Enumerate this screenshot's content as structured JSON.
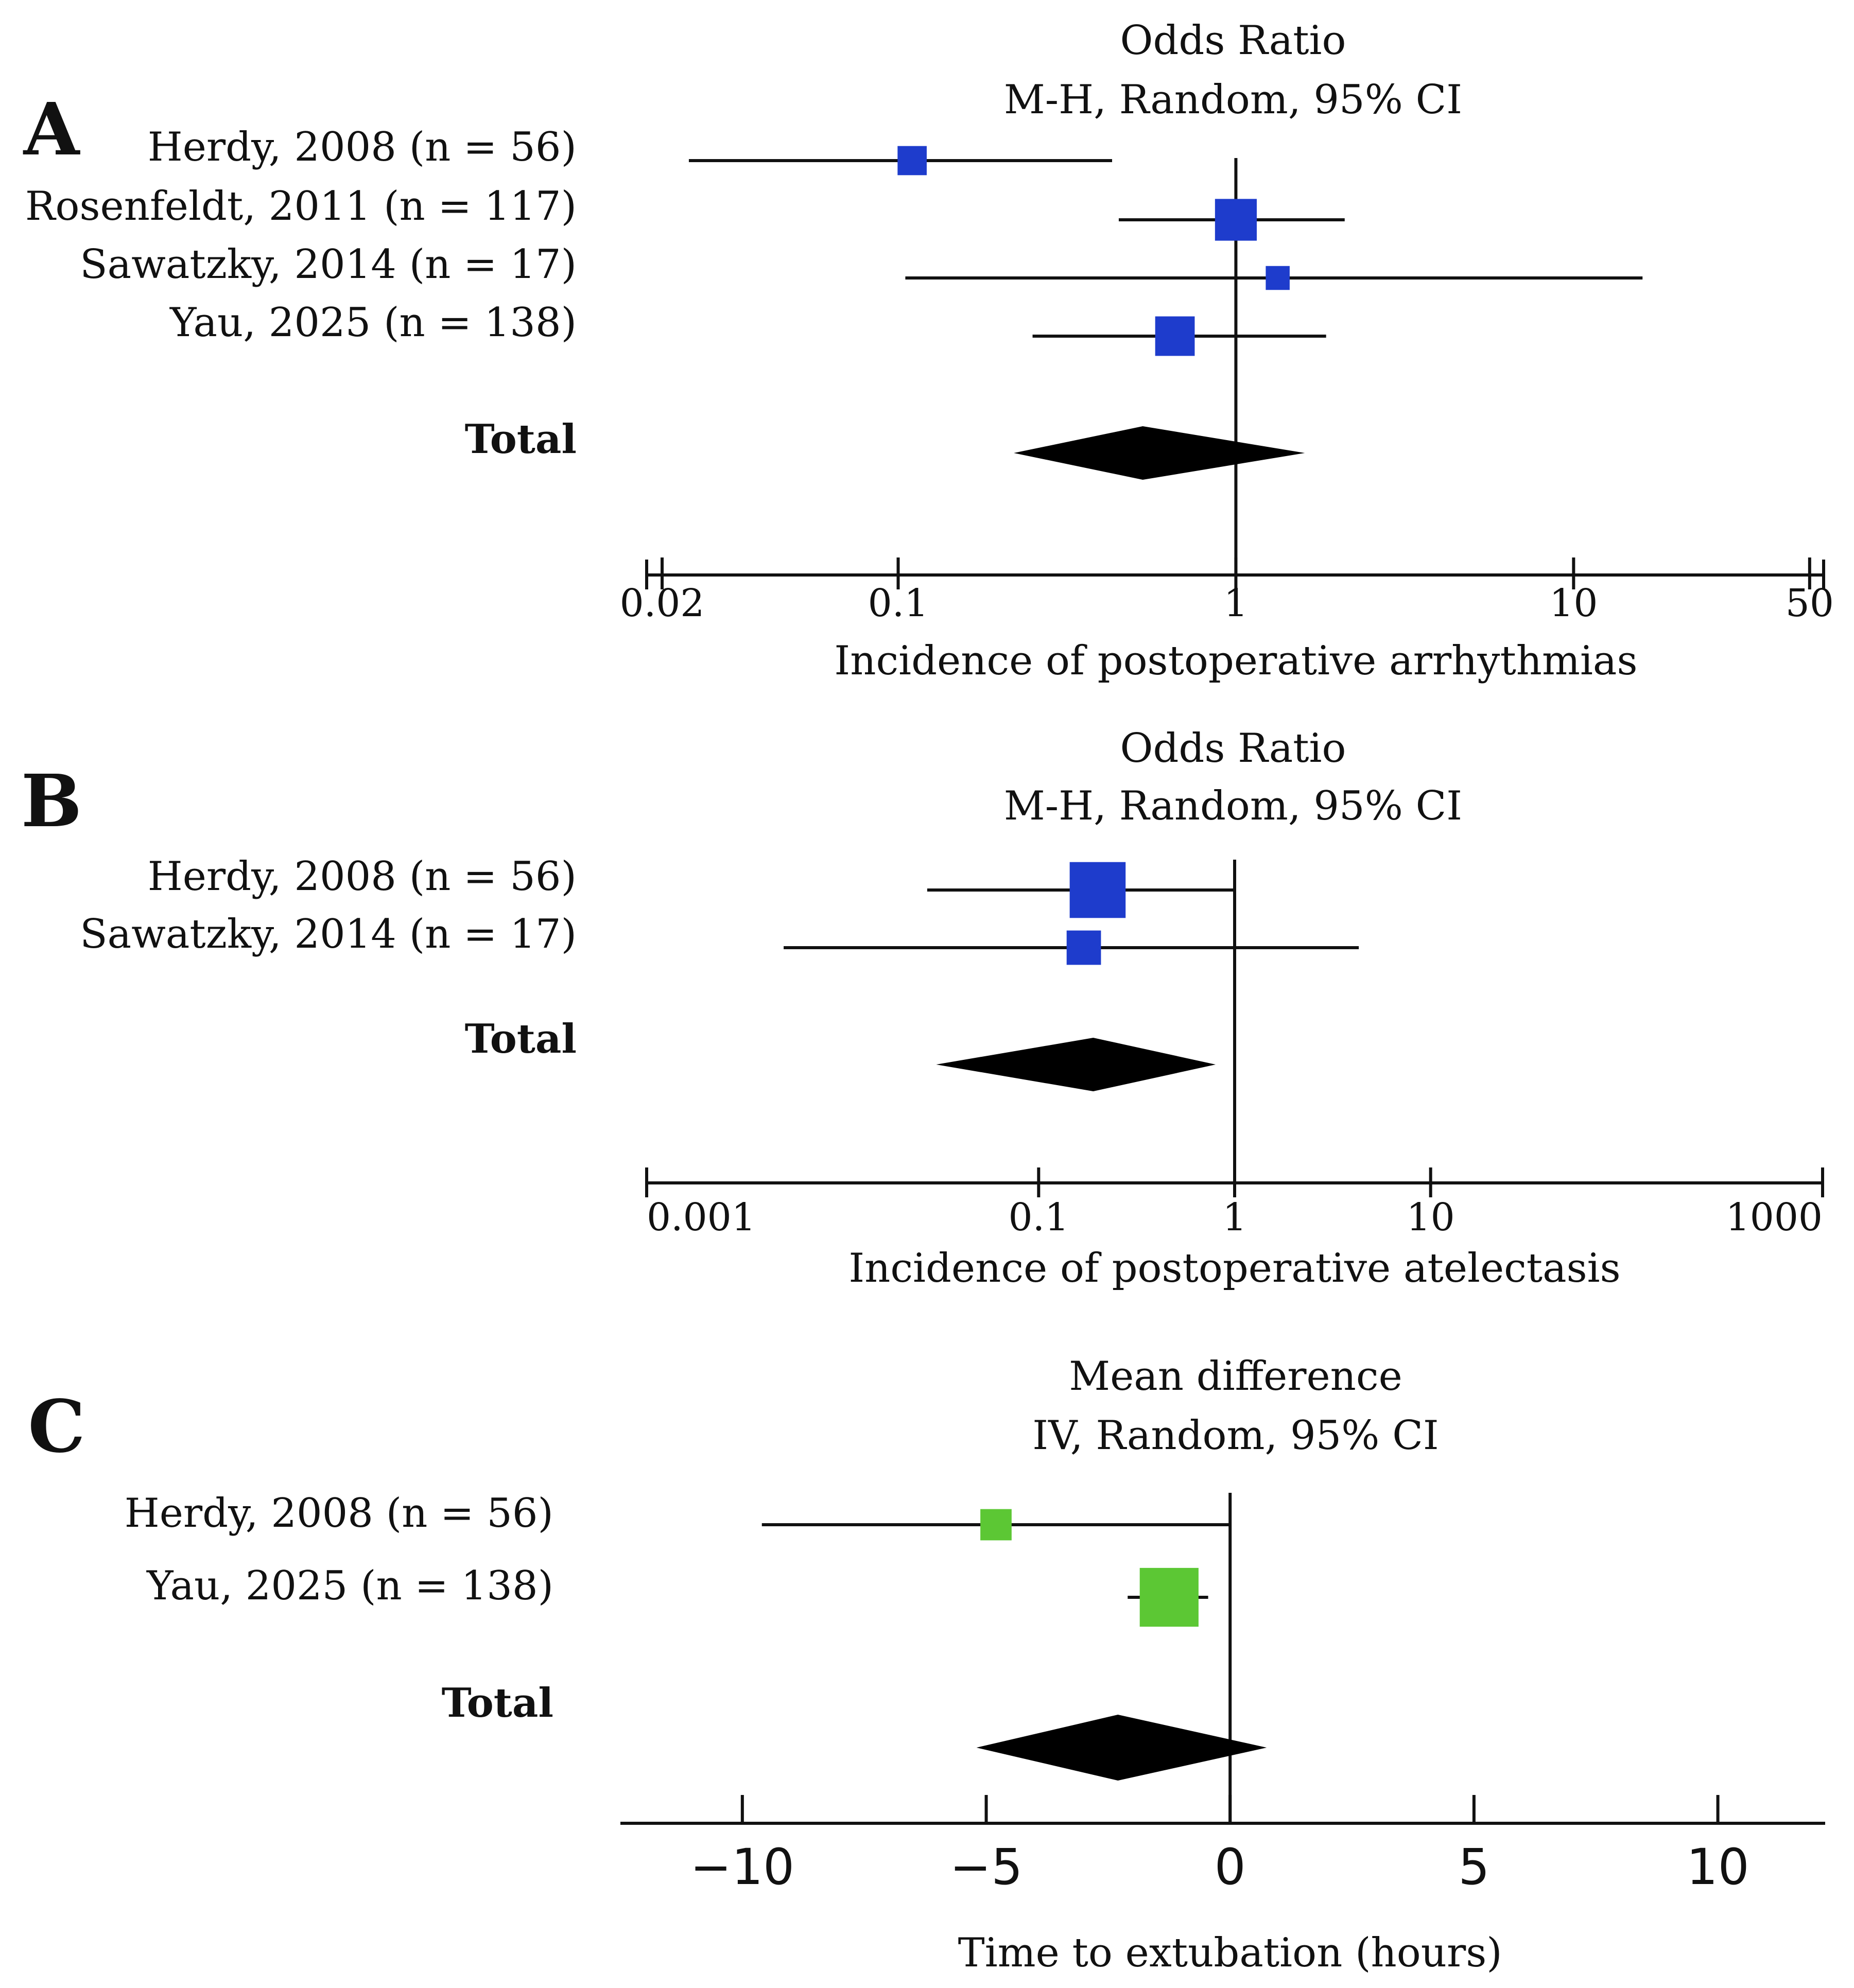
{
  "chart_data": [
    {
      "panel": "A",
      "type": "forest",
      "scale": "log",
      "header": [
        "Odds Ratio",
        "M-H, Random, 95% CI"
      ],
      "xlabel": "Incidence of postoperative arrhythmias",
      "xlim": [
        0.018,
        55
      ],
      "ticks": [
        {
          "value": 0.02,
          "label": "0.02"
        },
        {
          "value": 0.1,
          "label": "0.1"
        },
        {
          "value": 1,
          "label": "1"
        },
        {
          "value": 10,
          "label": "10"
        },
        {
          "value": 50,
          "label": "50"
        }
      ],
      "reference": 1,
      "studies": [
        {
          "label": "Herdy, 2008 (n = 56)",
          "estimate": 0.11,
          "ci_low": 0.024,
          "ci_high": 0.43,
          "weight": 0.12
        },
        {
          "label": "Rosenfeldt, 2011 (n = 117)",
          "estimate": 1.0,
          "ci_low": 0.45,
          "ci_high": 2.1,
          "weight": 0.35
        },
        {
          "label": "Sawatzky, 2014 (n = 17)",
          "estimate": 1.33,
          "ci_low": 0.105,
          "ci_high": 16.0,
          "weight": 0.06
        },
        {
          "label": "Yau, 2025 (n = 138)",
          "estimate": 0.66,
          "ci_low": 0.25,
          "ci_high": 1.85,
          "weight": 0.3
        }
      ],
      "total": {
        "label": "Total",
        "estimate": 0.53,
        "ci_low": 0.22,
        "ci_high": 1.6
      },
      "marker_color": "#1e3ccc"
    },
    {
      "panel": "B",
      "type": "forest",
      "scale": "log",
      "header": [
        "Odds Ratio",
        "M-H, Random, 95% CI"
      ],
      "xlabel": "Incidence of postoperative atelectasis",
      "xlim": [
        0.001,
        1000
      ],
      "ticks": [
        {
          "value": 0.001,
          "label": "0.001"
        },
        {
          "value": 0.1,
          "label": "0.1"
        },
        {
          "value": 1,
          "label": "1"
        },
        {
          "value": 10,
          "label": "10"
        },
        {
          "value": 1000,
          "label": "1000"
        }
      ],
      "reference": 1,
      "studies": [
        {
          "label": "Herdy, 2008 (n = 56)",
          "estimate": 0.2,
          "ci_low": 0.027,
          "ci_high": 1.0,
          "weight": 0.75
        },
        {
          "label": "Sawatzky, 2014 (n = 17)",
          "estimate": 0.17,
          "ci_low": 0.005,
          "ci_high": 4.3,
          "weight": 0.2
        }
      ],
      "total": {
        "label": "Total",
        "estimate": 0.19,
        "ci_low": 0.03,
        "ci_high": 0.8
      },
      "marker_color": "#1e3ccc"
    },
    {
      "panel": "C",
      "type": "forest",
      "scale": "linear",
      "header": [
        "Mean difference",
        "IV, Random, 95% CI"
      ],
      "xlabel": "Time to extubation (hours)",
      "xlim": [
        -12.5,
        12.2
      ],
      "ticks": [
        {
          "value": -10,
          "label": "−10"
        },
        {
          "value": -5,
          "label": "−5"
        },
        {
          "value": 0,
          "label": "0"
        },
        {
          "value": 5,
          "label": "5"
        },
        {
          "value": 10,
          "label": "10"
        }
      ],
      "reference": 0,
      "studies": [
        {
          "label": "Herdy, 2008 (n = 56)",
          "estimate": -4.8,
          "ci_low": -9.6,
          "ci_high": 0.0,
          "weight": 0.15
        },
        {
          "label": "Yau, 2025 (n = 138)",
          "estimate": -1.25,
          "ci_low": -2.1,
          "ci_high": -0.45,
          "weight": 0.85
        }
      ],
      "total": {
        "label": "Total",
        "estimate": -2.3,
        "ci_low": -5.2,
        "ci_high": 0.75
      },
      "marker_color": "#5cc734"
    }
  ]
}
